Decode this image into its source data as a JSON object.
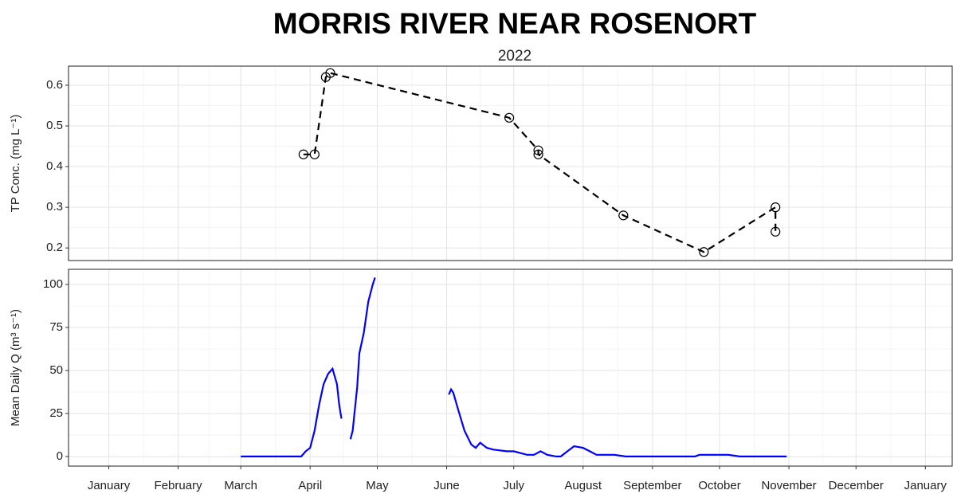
{
  "chart_data": [
    {
      "type": "line",
      "title": "MORRIS RIVER NEAR ROSENORT",
      "subtitle": "2022",
      "ylabel": "TP Conc. (mg L⁻¹)",
      "xlim": [
        "2021-12-14",
        "2023-01-13"
      ],
      "ylim": [
        0.169,
        0.647
      ],
      "yticks": [
        0.2,
        0.3,
        0.4,
        0.5,
        0.6
      ],
      "grid": true,
      "series": [
        {
          "color": "#000000",
          "linestyle": "dashed",
          "marker": "circle",
          "x": [
            "2022-03-29",
            "2022-04-03",
            "2022-04-08",
            "2022-04-10",
            "2022-06-29",
            "2022-07-12",
            "2022-07-12",
            "2022-08-19",
            "2022-09-24",
            "2022-10-26",
            "2022-10-26"
          ],
          "values": [
            0.43,
            0.43,
            0.62,
            0.63,
            0.52,
            0.44,
            0.43,
            0.28,
            0.19,
            0.3,
            0.24
          ]
        }
      ]
    },
    {
      "type": "line",
      "ylabel": "Mean Daily Q (m³ s⁻¹)",
      "xlim": [
        "2021-12-14",
        "2023-01-13"
      ],
      "xticks": [
        {
          "value": "2022-01-01",
          "label": "January"
        },
        {
          "value": "2022-02-01",
          "label": "February"
        },
        {
          "value": "2022-03-01",
          "label": "March"
        },
        {
          "value": "2022-04-01",
          "label": "April"
        },
        {
          "value": "2022-05-01",
          "label": "May"
        },
        {
          "value": "2022-06-01",
          "label": "June"
        },
        {
          "value": "2022-07-01",
          "label": "July"
        },
        {
          "value": "2022-08-01",
          "label": "August"
        },
        {
          "value": "2022-09-01",
          "label": "September"
        },
        {
          "value": "2022-10-01",
          "label": "October"
        },
        {
          "value": "2022-11-01",
          "label": "November"
        },
        {
          "value": "2022-12-01",
          "label": "December"
        },
        {
          "value": "2023-01-01",
          "label": "January"
        }
      ],
      "ylim": [
        -5.6,
        108.8
      ],
      "yticks": [
        0,
        25,
        50,
        75,
        100
      ],
      "grid": true,
      "series": [
        {
          "color": "#0000ff",
          "x": [
            "2022-03-01",
            "2022-03-15",
            "2022-03-28",
            "2022-03-30",
            "2022-04-01",
            "2022-04-03",
            "2022-04-05",
            "2022-04-07",
            "2022-04-09",
            "2022-04-11",
            "2022-04-13",
            "2022-04-14",
            "2022-04-15",
            "2022-04-17",
            "2022-04-19",
            "2022-04-20",
            "2022-04-22",
            "2022-04-23",
            "2022-04-25",
            "2022-04-27",
            "2022-04-29",
            "2022-04-30",
            "2022-05-15",
            "2022-06-02",
            "2022-06-03",
            "2022-06-04",
            "2022-06-06",
            "2022-06-09",
            "2022-06-12",
            "2022-06-14",
            "2022-06-16",
            "2022-06-19",
            "2022-06-22",
            "2022-06-28",
            "2022-07-01",
            "2022-07-07",
            "2022-07-10",
            "2022-07-13",
            "2022-07-16",
            "2022-07-20",
            "2022-07-22",
            "2022-07-25",
            "2022-07-28",
            "2022-08-01",
            "2022-08-04",
            "2022-08-07",
            "2022-08-15",
            "2022-08-20",
            "2022-09-01",
            "2022-09-20",
            "2022-09-22",
            "2022-10-05",
            "2022-10-10",
            "2022-10-31"
          ],
          "values": [
            0,
            0,
            0,
            3,
            5,
            15,
            30,
            42,
            48,
            51,
            42,
            30,
            22,
            null,
            10,
            15,
            40,
            60,
            72,
            90,
            100,
            104,
            null,
            36,
            39,
            37,
            28,
            15,
            7,
            5,
            8,
            5,
            4,
            3,
            3,
            1,
            1,
            3,
            1,
            0,
            0,
            3,
            6,
            5,
            3,
            1,
            1,
            0,
            0,
            0,
            1,
            1,
            0,
            0
          ]
        }
      ]
    }
  ]
}
